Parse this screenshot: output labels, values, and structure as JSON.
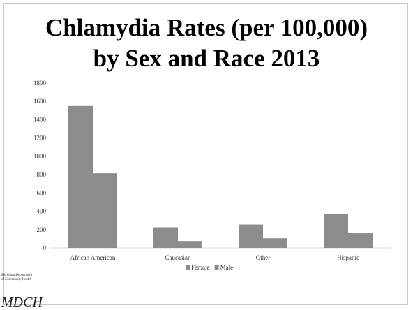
{
  "title_line1": "Chlamydia Rates (per 100,000)",
  "title_line2": "by Sex and Race 2013",
  "logo": {
    "line1": "Michigan Department",
    "line2": "of Community Health",
    "mark": "MDCH"
  },
  "chart_data": {
    "type": "bar",
    "categories": [
      "African American",
      "Caucasian",
      "Other",
      "Hispanic"
    ],
    "series": [
      {
        "name": "Female",
        "values": [
          1550,
          225,
          255,
          370
        ],
        "color": "#8c8c8c"
      },
      {
        "name": "Male",
        "values": [
          815,
          75,
          105,
          160
        ],
        "color": "#8c8c8c"
      }
    ],
    "ylim": [
      0,
      1800
    ],
    "yticks": [
      0,
      200,
      400,
      600,
      800,
      1000,
      1200,
      1400,
      1600,
      1800
    ],
    "legend": "bottom",
    "grid": false
  }
}
